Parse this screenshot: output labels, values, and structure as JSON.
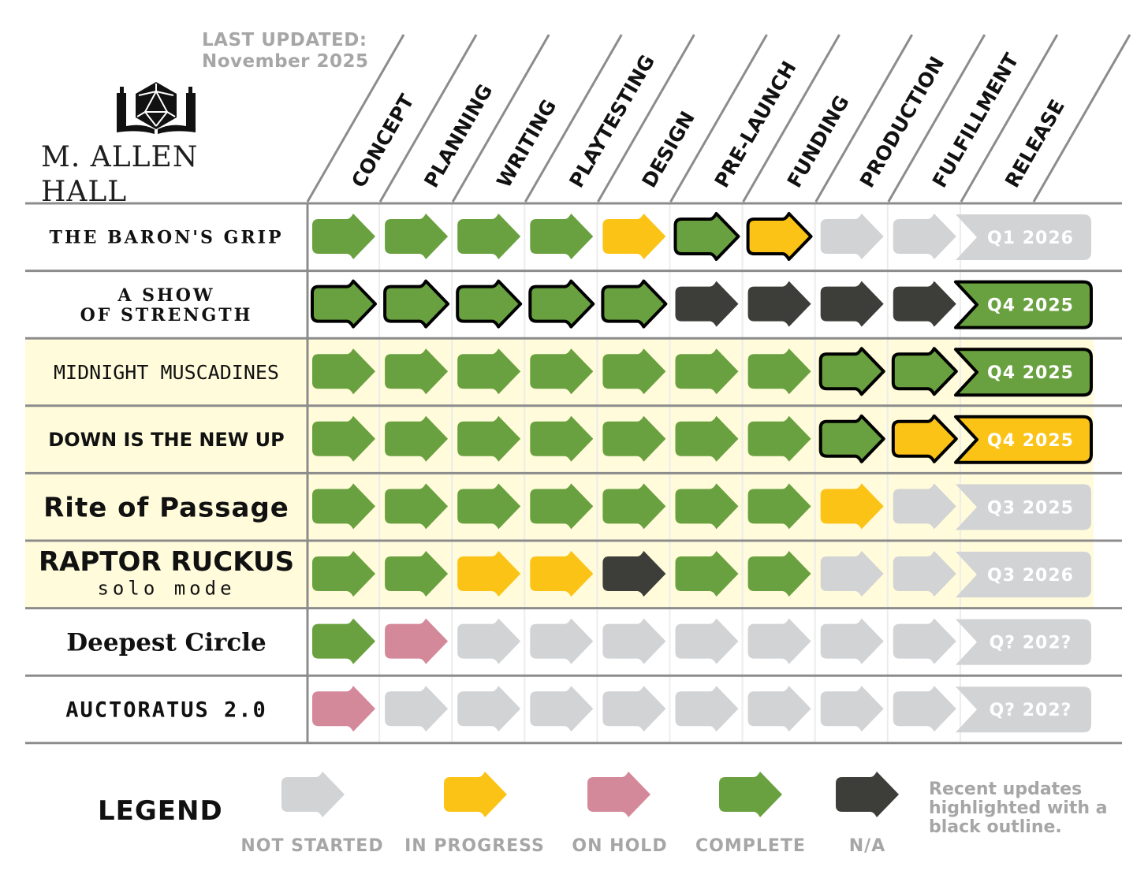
{
  "header": {
    "last_updated_label": "LAST UPDATED:",
    "last_updated_value": "November 2025",
    "brand": "M. ALLEN HALL",
    "logo_icon": "d20-book-icon"
  },
  "colors": {
    "complete": "#6aa140",
    "in_progress": "#fbc316",
    "on_hold": "#d4899a",
    "not_started": "#d2d3d5",
    "na": "#3d3d3a",
    "highlight_row": "#fffbdb",
    "release_text": "#ffffff"
  },
  "chart_data": {
    "type": "table",
    "stages": [
      "CONCEPT",
      "PLANNING",
      "WRITING",
      "PLAYTESTING",
      "DESIGN",
      "PRE-LAUNCH",
      "FUNDING",
      "PRODUCTION",
      "FULFILLMENT",
      "RELEASE"
    ],
    "projects": [
      {
        "title_lines": [
          "THE BARON'S GRIP"
        ],
        "font": "serif-caps",
        "highlight": false,
        "stages": [
          "complete",
          "complete",
          "complete",
          "complete",
          "in_progress",
          "complete",
          "in_progress",
          "not_started",
          "not_started"
        ],
        "outlined": [
          false,
          false,
          false,
          false,
          false,
          true,
          true,
          false,
          false
        ],
        "release": "Q1 2026",
        "release_status": "not_started",
        "release_outlined": false
      },
      {
        "title_lines": [
          "A SHOW",
          "OF STRENGTH"
        ],
        "font": "serif-caps",
        "highlight": false,
        "stages": [
          "complete",
          "complete",
          "complete",
          "complete",
          "complete",
          "na",
          "na",
          "na",
          "na"
        ],
        "outlined": [
          true,
          true,
          true,
          true,
          true,
          false,
          false,
          false,
          false
        ],
        "release": "Q4 2025",
        "release_status": "complete",
        "release_outlined": true
      },
      {
        "title_lines": [
          "MIDNIGHT MUSCADINES"
        ],
        "font": "thin",
        "highlight": true,
        "stages": [
          "complete",
          "complete",
          "complete",
          "complete",
          "complete",
          "complete",
          "complete",
          "complete",
          "complete"
        ],
        "outlined": [
          false,
          false,
          false,
          false,
          false,
          false,
          false,
          true,
          true
        ],
        "release": "Q4 2025",
        "release_status": "complete",
        "release_outlined": true
      },
      {
        "title_lines": [
          "DOWN IS THE NEW UP"
        ],
        "font": "condensed",
        "highlight": true,
        "stages": [
          "complete",
          "complete",
          "complete",
          "complete",
          "complete",
          "complete",
          "complete",
          "complete",
          "in_progress"
        ],
        "outlined": [
          false,
          false,
          false,
          false,
          false,
          false,
          false,
          true,
          true
        ],
        "release": "Q4 2025",
        "release_status": "in_progress",
        "release_outlined": true
      },
      {
        "title_lines": [
          "Rite of Passage"
        ],
        "font": "bold-sans",
        "highlight": true,
        "stages": [
          "complete",
          "complete",
          "complete",
          "complete",
          "complete",
          "complete",
          "complete",
          "in_progress",
          "not_started"
        ],
        "outlined": [
          false,
          false,
          false,
          false,
          false,
          false,
          false,
          false,
          false
        ],
        "release": "Q3 2025",
        "release_status": "not_started",
        "release_outlined": false
      },
      {
        "title_lines": [
          "RAPTOR RUCKUS",
          "solo mode"
        ],
        "font": "brush",
        "highlight": true,
        "stages": [
          "complete",
          "complete",
          "in_progress",
          "in_progress",
          "na",
          "complete",
          "complete",
          "not_started",
          "not_started"
        ],
        "outlined": [
          false,
          false,
          false,
          false,
          false,
          false,
          false,
          false,
          false
        ],
        "release": "Q3 2026",
        "release_status": "not_started",
        "release_outlined": false
      },
      {
        "title_lines": [
          "Deepest Circle"
        ],
        "font": "blackletter",
        "highlight": false,
        "stages": [
          "complete",
          "on_hold",
          "not_started",
          "not_started",
          "not_started",
          "not_started",
          "not_started",
          "not_started",
          "not_started"
        ],
        "outlined": [
          false,
          false,
          false,
          false,
          false,
          false,
          false,
          false,
          false
        ],
        "release": "Q? 202?",
        "release_status": "not_started",
        "release_outlined": false
      },
      {
        "title_lines": [
          "AUCTORATUS 2.0"
        ],
        "font": "blocky",
        "highlight": false,
        "stages": [
          "on_hold",
          "not_started",
          "not_started",
          "not_started",
          "not_started",
          "not_started",
          "not_started",
          "not_started",
          "not_started"
        ],
        "outlined": [
          false,
          false,
          false,
          false,
          false,
          false,
          false,
          false,
          false
        ],
        "release": "Q? 202?",
        "release_status": "not_started",
        "release_outlined": false
      }
    ]
  },
  "legend": {
    "title": "LEGEND",
    "items": [
      {
        "status": "not_started",
        "label": "NOT STARTED"
      },
      {
        "status": "in_progress",
        "label": "IN PROGRESS"
      },
      {
        "status": "on_hold",
        "label": "ON HOLD"
      },
      {
        "status": "complete",
        "label": "COMPLETE"
      },
      {
        "status": "na",
        "label": "N/A"
      }
    ],
    "note": "Recent updates highlighted with a black outline."
  }
}
